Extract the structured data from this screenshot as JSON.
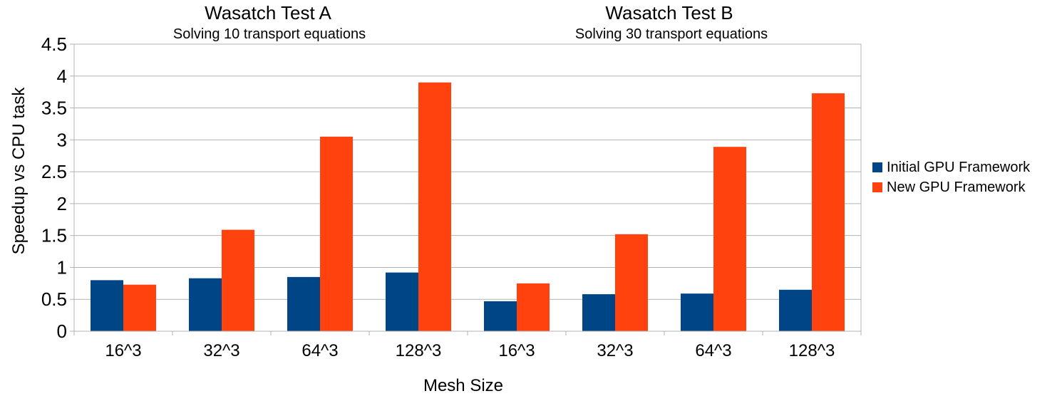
{
  "chart_data": {
    "type": "bar",
    "groups": [
      {
        "title": "Wasatch Test A",
        "subtitle": "Solving 10 transport equations"
      },
      {
        "title": "Wasatch Test B",
        "subtitle": "Solving 30 transport equations"
      }
    ],
    "categories": [
      "16^3",
      "32^3",
      "64^3",
      "128^3",
      "16^3",
      "32^3",
      "64^3",
      "128^3"
    ],
    "series": [
      {
        "name": "Initial GPU Framework",
        "color": "#004586",
        "values": [
          0.8,
          0.83,
          0.85,
          0.92,
          0.47,
          0.58,
          0.59,
          0.65
        ]
      },
      {
        "name": "New GPU Framework",
        "color": "#ff420e",
        "values": [
          0.73,
          1.59,
          3.05,
          3.9,
          0.75,
          1.52,
          2.89,
          3.73
        ]
      }
    ],
    "xlabel": "Mesh Size",
    "ylabel": "Speedup vs CPU task",
    "ylim": [
      0,
      4.5
    ],
    "yticks": [
      "0",
      "0.5",
      "1",
      "1.5",
      "2",
      "2.5",
      "3",
      "3.5",
      "4",
      "4.5"
    ],
    "grid": true,
    "legend_position": "right"
  }
}
